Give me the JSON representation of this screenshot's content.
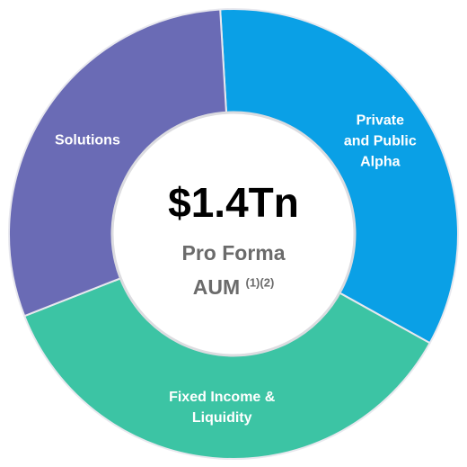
{
  "chart_data": {
    "type": "donut",
    "categories": [
      "Private and Public Alpha",
      "Fixed Income & Liquidity",
      "Solutions"
    ],
    "values": [
      34,
      36,
      30
    ],
    "colors": [
      "#0aa0e6",
      "#3cc4a4",
      "#6a6bb5"
    ],
    "center_text": [
      "$1.4Tn",
      "Pro Forma",
      "AUM"
    ],
    "footnote": "(1)(2)"
  }
}
